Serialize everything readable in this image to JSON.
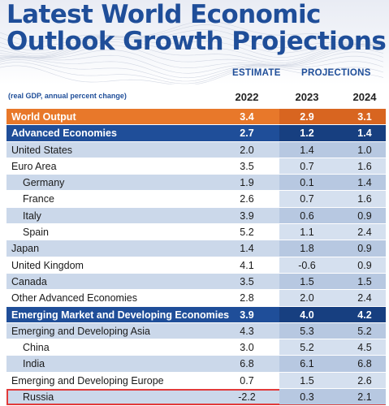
{
  "title_line1": "Latest World Economic",
  "title_line2": "Outlook Growth Projections",
  "header": {
    "estimate_label": "ESTIMATE",
    "projections_label": "PROJECTIONS",
    "note": "(real GDP, annual percent change)"
  },
  "colors": {
    "title_blue": "#1f4e99",
    "world_orange": "#e8782a",
    "row_blue": "#cbd8ea",
    "highlight_red": "#e23a3a"
  },
  "chart_data": {
    "type": "table",
    "title": "Latest World Economic Outlook Growth Projections",
    "note": "(real GDP, annual percent change)",
    "columns": [
      "2022",
      "2023",
      "2024"
    ],
    "column_groups": [
      {
        "label": "ESTIMATE",
        "columns": [
          "2022"
        ]
      },
      {
        "label": "PROJECTIONS",
        "columns": [
          "2023",
          "2024"
        ]
      }
    ],
    "rows": [
      {
        "label": "World Output",
        "values": [
          "3.4",
          "2.9",
          "3.1"
        ],
        "style": "world",
        "indent": false
      },
      {
        "label": "Advanced Economies",
        "values": [
          "2.7",
          "1.2",
          "1.4"
        ],
        "style": "dark",
        "indent": false
      },
      {
        "label": "United States",
        "values": [
          "2.0",
          "1.4",
          "1.0"
        ],
        "style": "blue",
        "indent": false
      },
      {
        "label": "Euro Area",
        "values": [
          "3.5",
          "0.7",
          "1.6"
        ],
        "style": "light",
        "indent": false
      },
      {
        "label": "Germany",
        "values": [
          "1.9",
          "0.1",
          "1.4"
        ],
        "style": "blue",
        "indent": true
      },
      {
        "label": "France",
        "values": [
          "2.6",
          "0.7",
          "1.6"
        ],
        "style": "light",
        "indent": true
      },
      {
        "label": "Italy",
        "values": [
          "3.9",
          "0.6",
          "0.9"
        ],
        "style": "blue",
        "indent": true
      },
      {
        "label": "Spain",
        "values": [
          "5.2",
          "1.1",
          "2.4"
        ],
        "style": "light",
        "indent": true
      },
      {
        "label": "Japan",
        "values": [
          "1.4",
          "1.8",
          "0.9"
        ],
        "style": "blue",
        "indent": false
      },
      {
        "label": "United Kingdom",
        "values": [
          "4.1",
          "-0.6",
          "0.9"
        ],
        "style": "light",
        "indent": false
      },
      {
        "label": "Canada",
        "values": [
          "3.5",
          "1.5",
          "1.5"
        ],
        "style": "blue",
        "indent": false
      },
      {
        "label": "Other Advanced Economies",
        "values": [
          "2.8",
          "2.0",
          "2.4"
        ],
        "style": "light",
        "indent": false
      },
      {
        "label": "Emerging Market and Developing Economies",
        "values": [
          "3.9",
          "4.0",
          "4.2"
        ],
        "style": "dark",
        "indent": false
      },
      {
        "label": "Emerging and Developing Asia",
        "values": [
          "4.3",
          "5.3",
          "5.2"
        ],
        "style": "blue",
        "indent": false
      },
      {
        "label": "China",
        "values": [
          "3.0",
          "5.2",
          "4.5"
        ],
        "style": "light",
        "indent": true
      },
      {
        "label": "India",
        "values": [
          "6.8",
          "6.1",
          "6.8"
        ],
        "style": "blue",
        "indent": true
      },
      {
        "label": "Emerging and Developing Europe",
        "values": [
          "0.7",
          "1.5",
          "2.6"
        ],
        "style": "light",
        "indent": false
      },
      {
        "label": "Russia",
        "values": [
          "-2.2",
          "0.3",
          "2.1"
        ],
        "style": "blue",
        "indent": true,
        "highlighted": true
      }
    ]
  }
}
